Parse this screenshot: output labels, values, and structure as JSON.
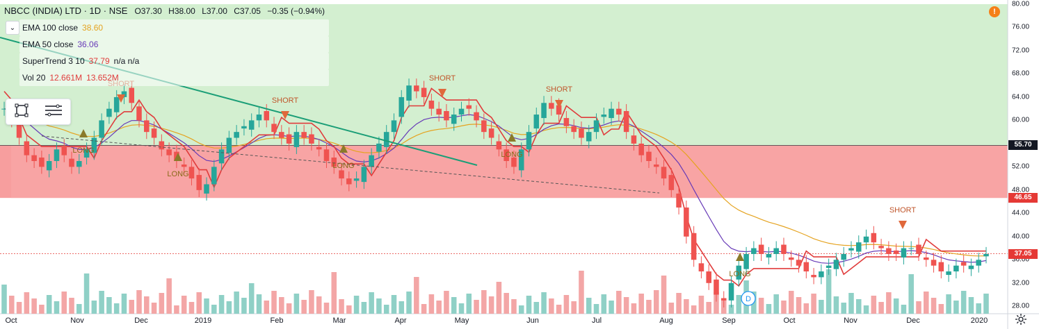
{
  "header": {
    "title": "NBCC (INDIA) LTD · 1D · NSE",
    "ohlc": [
      "O37.30",
      "H38.00",
      "L37.00",
      "C37.05",
      "−0.35 (−0.94%)"
    ]
  },
  "indicators": [
    {
      "name": "EMA 100 close",
      "value": "38.60",
      "color": "#e5a320"
    },
    {
      "name": "EMA 50 close",
      "value": "36.06",
      "color": "#673ab7"
    },
    {
      "name": "SuperTrend 3 10",
      "value": "37.79",
      "extra": "n/a n/a",
      "color": "#e03b3b"
    },
    {
      "name": "Vol 20",
      "value": "12.661M",
      "value2": "13.652M",
      "color": "#e03b3b"
    }
  ],
  "price_axis": {
    "labels": [
      "80.00",
      "76.00",
      "72.00",
      "68.00",
      "64.00",
      "60.00",
      "56.00",
      "52.00",
      "48.00",
      "44.00",
      "40.00",
      "36.00",
      "32.00",
      "28.00"
    ],
    "tags": [
      {
        "text": "55.70",
        "color": "#131722",
        "price": 55.7
      },
      {
        "text": "46.65",
        "color": "#e53935",
        "price": 46.65
      },
      {
        "text": "37.05",
        "color": "#e53935",
        "price": 37.05
      }
    ]
  },
  "time_axis": {
    "labels": [
      "Oct",
      "Nov",
      "Dec",
      "2019",
      "Feb",
      "Mar",
      "Apr",
      "May",
      "Jun",
      "Jul",
      "Aug",
      "Sep",
      "Oct",
      "Nov",
      "Dec",
      "2020"
    ]
  },
  "signals": [
    {
      "type": "LONG",
      "label": "LONG"
    },
    {
      "type": "SHORT",
      "label": "SHORT"
    },
    {
      "type": "D",
      "label": "D"
    }
  ],
  "chart_data": {
    "type": "candlestick",
    "symbol": "NBCC (INDIA) LTD",
    "interval": "1D",
    "exchange": "NSE",
    "zones": [
      {
        "name": "resistance-zone",
        "from": 55.7,
        "to": 80.0,
        "color": "#d3efd0"
      },
      {
        "name": "support-zone",
        "from": 46.65,
        "to": 55.7,
        "color": "#f79e9e"
      }
    ],
    "horizontal_levels": [
      55.7,
      46.65,
      37.05
    ],
    "close_series": [
      62,
      60,
      57,
      54,
      53,
      52,
      53,
      55,
      54,
      52,
      53,
      55,
      57,
      60,
      62,
      64,
      65,
      63,
      60,
      58,
      57,
      55,
      54,
      53,
      52,
      50,
      48,
      49,
      52,
      55,
      57,
      58,
      59,
      60,
      61,
      60,
      58,
      57,
      56,
      58,
      57,
      56,
      55,
      53,
      52,
      50,
      49,
      50,
      52,
      54,
      56,
      58,
      60,
      64,
      66,
      65,
      64,
      62,
      61,
      60,
      61,
      62,
      62,
      60,
      58,
      57,
      55,
      53,
      52,
      55,
      58,
      61,
      63,
      62,
      61,
      59,
      58,
      57,
      58,
      60,
      61,
      62,
      61,
      58,
      56,
      54,
      53,
      52,
      50,
      48,
      45,
      40,
      36,
      34,
      32,
      30,
      29,
      32,
      35,
      37,
      38,
      37,
      37,
      38,
      37,
      36,
      35,
      34,
      33,
      34,
      35,
      36,
      37,
      38,
      39,
      40,
      39,
      38,
      37,
      37,
      38,
      38,
      37,
      36,
      35,
      34,
      34,
      35,
      35,
      35,
      36,
      37
    ],
    "trendline_color": "#1b9e77",
    "supertrend_colors": {
      "up": "#3fa63a",
      "down": "#e03b3b"
    }
  }
}
